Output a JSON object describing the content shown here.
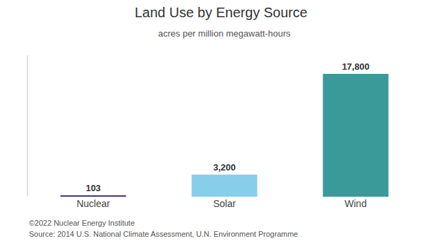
{
  "chart_data": {
    "type": "bar",
    "title": "Land Use by Energy Source",
    "subtitle": "acres per million megawatt-hours",
    "annotations": [
      "©2022 Nuclear Energy Institute",
      "Source: 2014 U.S. National Climate Assessment, U.N. Environment Programme"
    ],
    "categories": [
      "Nuclear",
      "Solar",
      "Wind"
    ],
    "values": [
      103,
      3200,
      17800
    ],
    "value_labels": [
      "103",
      "3,200",
      "17,800"
    ],
    "colors": [
      "#4B2C8A",
      "#87CEEB",
      "#3A9A9A"
    ],
    "data_labels": true,
    "ylim": [
      0,
      20500
    ],
    "yticks": [],
    "tick_labels": "x",
    "grid": false
  }
}
